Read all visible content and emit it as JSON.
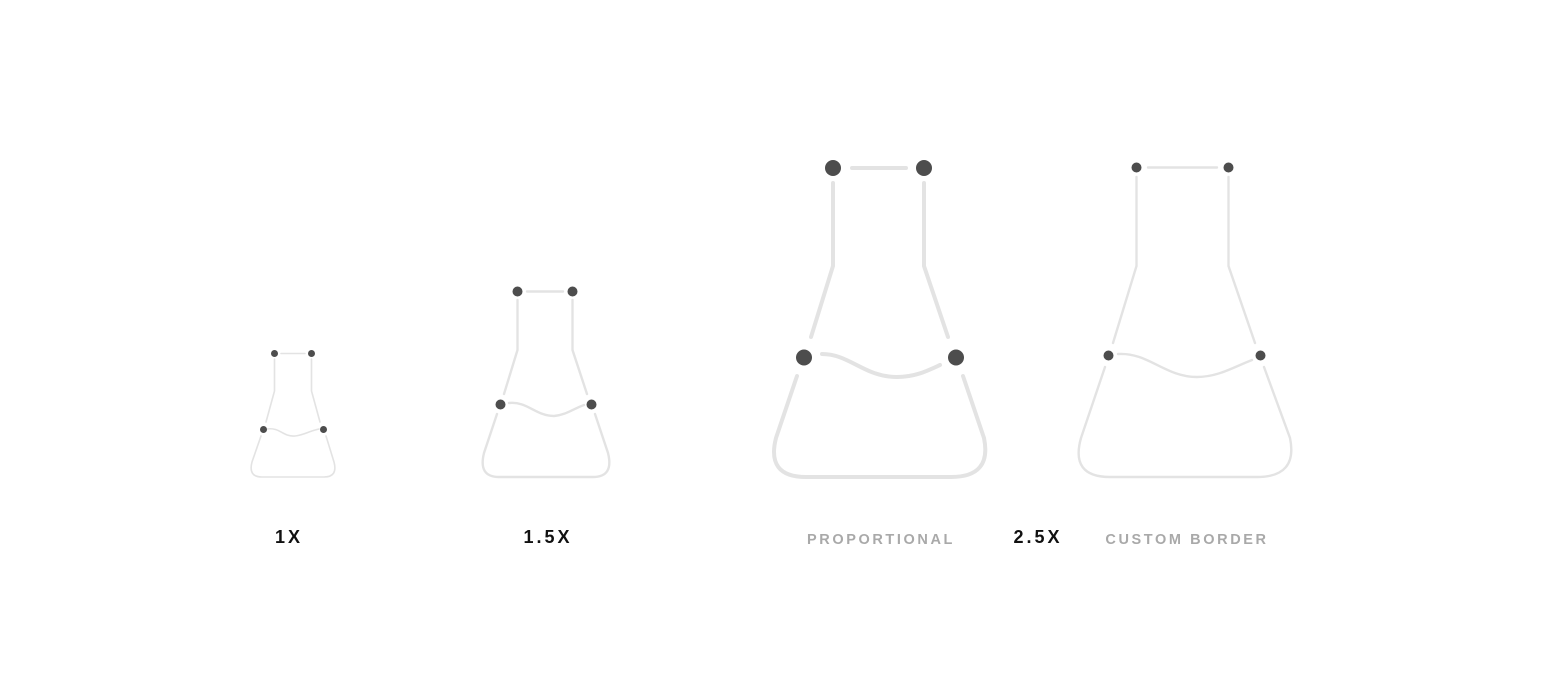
{
  "colors": {
    "outline": "#e3e3e3",
    "dot": "#4d4d4d",
    "label_dark": "#111111",
    "label_light": "#a9a9a9"
  },
  "icon": "flask-icon",
  "labels": {
    "one_x": "1X",
    "one_five_x": "1.5X",
    "proportional": "PROPORTIONAL",
    "two_five_x": "2.5X",
    "custom_border": "CUSTOM BORDER"
  }
}
